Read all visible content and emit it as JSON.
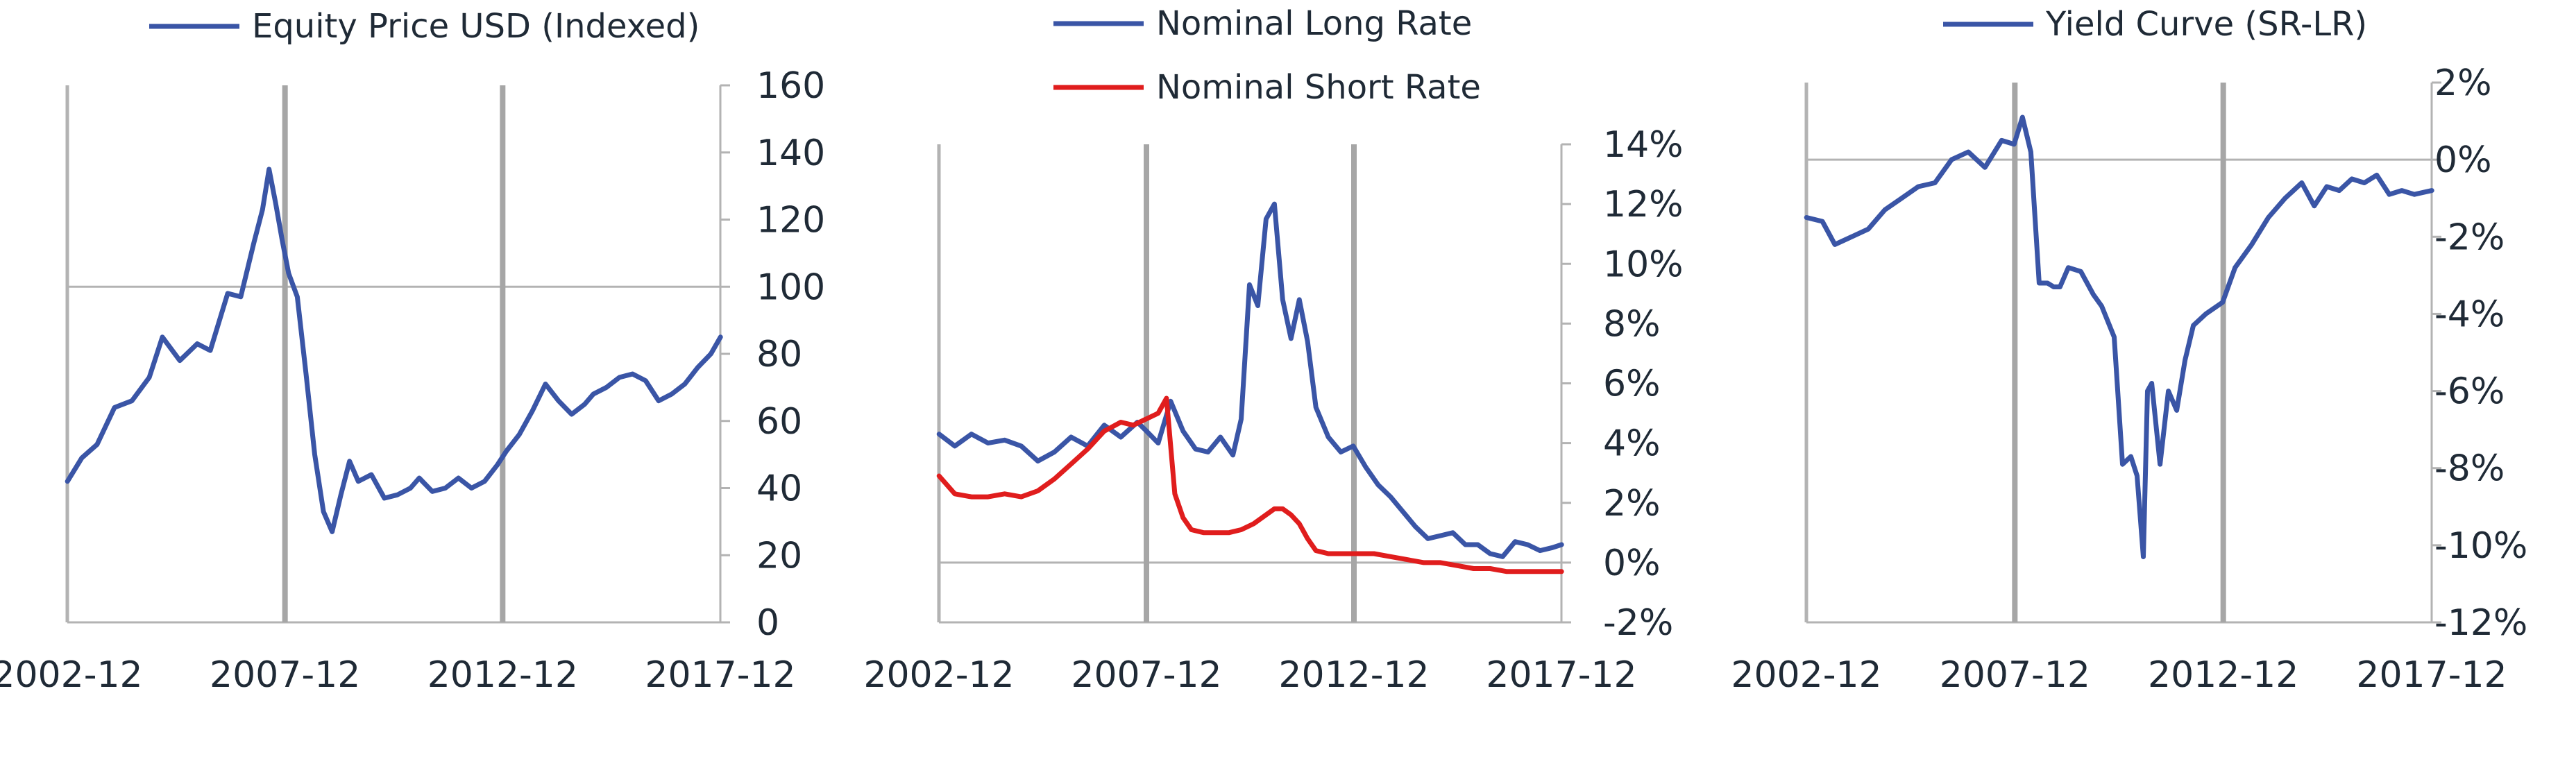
{
  "colors": {
    "blue": "#3a55a6",
    "red": "#e01d1d",
    "axis": "#b3b3b3",
    "vline": "#a6a6a6",
    "text": "#1f2a36"
  },
  "chart_data": [
    {
      "type": "line",
      "xlim": [
        "2002-12",
        "2017-12"
      ],
      "x_ticks": [
        "2002-12",
        "2007-12",
        "2012-12",
        "2017-12"
      ],
      "vertical_lines": [
        "2007-12",
        "2012-12"
      ],
      "baseline": 100,
      "ylim": [
        0,
        160
      ],
      "y_ticks": [
        "0",
        "20",
        "40",
        "60",
        "80",
        "100",
        "120",
        "140",
        "160"
      ],
      "y_tick_values": [
        0,
        20,
        40,
        60,
        80,
        100,
        120,
        140,
        160
      ],
      "legend_position": "top",
      "series": [
        {
          "name": "Equity Price USD (Indexed)",
          "color": "#3a55a6",
          "x": [
            2002.92,
            2003.25,
            2003.6,
            2004.0,
            2004.4,
            2004.8,
            2005.1,
            2005.5,
            2005.9,
            2006.2,
            2006.6,
            2006.9,
            2007.2,
            2007.4,
            2007.55,
            2007.7,
            2007.85,
            2008.0,
            2008.2,
            2008.4,
            2008.6,
            2008.8,
            2009.0,
            2009.2,
            2009.4,
            2009.6,
            2009.9,
            2010.2,
            2010.5,
            2010.8,
            2011.0,
            2011.3,
            2011.6,
            2011.9,
            2012.2,
            2012.5,
            2012.8,
            2013.0,
            2013.3,
            2013.6,
            2013.9,
            2014.2,
            2014.5,
            2014.8,
            2015.0,
            2015.3,
            2015.6,
            2015.9,
            2016.2,
            2016.5,
            2016.8,
            2017.1,
            2017.4,
            2017.7,
            2017.92
          ],
          "y": [
            42,
            49,
            53,
            64,
            66,
            73,
            85,
            78,
            83,
            81,
            98,
            97,
            113,
            123,
            135,
            125,
            114,
            104,
            97,
            74,
            50,
            33,
            27,
            38,
            48,
            42,
            44,
            37,
            38,
            40,
            43,
            39,
            40,
            43,
            40,
            42,
            47,
            51,
            56,
            63,
            71,
            66,
            62,
            65,
            68,
            70,
            73,
            74,
            72,
            66,
            68,
            71,
            76,
            80,
            85
          ]
        }
      ]
    },
    {
      "type": "line",
      "xlim": [
        "2002-12",
        "2017-12"
      ],
      "x_ticks": [
        "2002-12",
        "2007-12",
        "2012-12",
        "2017-12"
      ],
      "vertical_lines": [
        "2007-12",
        "2012-12"
      ],
      "baseline": 0,
      "ylim": [
        -2,
        14
      ],
      "y_ticks": [
        "-2%",
        "0%",
        "2%",
        "4%",
        "6%",
        "8%",
        "10%",
        "12%",
        "14%"
      ],
      "y_tick_values": [
        -2,
        0,
        2,
        4,
        6,
        8,
        10,
        12,
        14
      ],
      "legend_position": "top",
      "series": [
        {
          "name": "Nominal Long Rate",
          "color": "#3a55a6",
          "x": [
            2002.92,
            2003.3,
            2003.7,
            2004.1,
            2004.5,
            2004.9,
            2005.3,
            2005.7,
            2006.1,
            2006.5,
            2006.9,
            2007.3,
            2007.7,
            2007.92,
            2008.2,
            2008.5,
            2008.8,
            2009.1,
            2009.4,
            2009.7,
            2010.0,
            2010.2,
            2010.4,
            2010.6,
            2010.8,
            2011.0,
            2011.2,
            2011.4,
            2011.6,
            2011.8,
            2012.0,
            2012.3,
            2012.6,
            2012.9,
            2013.2,
            2013.5,
            2013.8,
            2014.1,
            2014.4,
            2014.7,
            2015.0,
            2015.3,
            2015.6,
            2015.9,
            2016.2,
            2016.5,
            2016.8,
            2017.1,
            2017.4,
            2017.7,
            2017.92
          ],
          "y": [
            4.3,
            3.9,
            4.3,
            4.0,
            4.1,
            3.9,
            3.4,
            3.7,
            4.2,
            3.9,
            4.6,
            4.2,
            4.7,
            4.4,
            4.0,
            5.4,
            4.4,
            3.8,
            3.7,
            4.2,
            3.6,
            4.8,
            9.3,
            8.6,
            11.5,
            12.0,
            8.8,
            7.5,
            8.8,
            7.4,
            5.2,
            4.2,
            3.7,
            3.9,
            3.2,
            2.6,
            2.2,
            1.7,
            1.2,
            0.8,
            0.9,
            1.0,
            0.6,
            0.6,
            0.3,
            0.2,
            0.7,
            0.6,
            0.4,
            0.5,
            0.6
          ]
        },
        {
          "name": "Nominal Short Rate",
          "color": "#e01d1d",
          "x": [
            2002.92,
            2003.3,
            2003.7,
            2004.1,
            2004.5,
            2004.9,
            2005.3,
            2005.7,
            2006.1,
            2006.5,
            2006.9,
            2007.3,
            2007.6,
            2007.9,
            2008.2,
            2008.4,
            2008.6,
            2008.8,
            2009.0,
            2009.3,
            2009.6,
            2009.9,
            2010.2,
            2010.5,
            2010.8,
            2011.0,
            2011.2,
            2011.4,
            2011.6,
            2011.8,
            2012.0,
            2012.3,
            2012.7,
            2013.0,
            2013.4,
            2013.8,
            2014.2,
            2014.6,
            2015.0,
            2015.4,
            2015.8,
            2016.2,
            2016.6,
            2017.0,
            2017.4,
            2017.92
          ],
          "y": [
            2.9,
            2.3,
            2.2,
            2.2,
            2.3,
            2.2,
            2.4,
            2.8,
            3.3,
            3.8,
            4.4,
            4.7,
            4.6,
            4.8,
            5.0,
            5.5,
            2.3,
            1.5,
            1.1,
            1.0,
            1.0,
            1.0,
            1.1,
            1.3,
            1.6,
            1.8,
            1.8,
            1.6,
            1.3,
            0.8,
            0.4,
            0.3,
            0.3,
            0.3,
            0.3,
            0.2,
            0.1,
            0.0,
            0.0,
            -0.1,
            -0.2,
            -0.2,
            -0.3,
            -0.3,
            -0.3,
            -0.3
          ]
        }
      ]
    },
    {
      "type": "line",
      "xlim": [
        "2002-12",
        "2017-12"
      ],
      "x_ticks": [
        "2002-12",
        "2007-12",
        "2012-12",
        "2017-12"
      ],
      "vertical_lines": [
        "2007-12",
        "2012-12"
      ],
      "baseline": 0,
      "ylim": [
        -12,
        2
      ],
      "y_ticks": [
        "-12%",
        "-10%",
        "-8%",
        "-6%",
        "-4%",
        "-2%",
        "0%",
        "2%"
      ],
      "y_tick_values": [
        -12,
        -10,
        -8,
        -6,
        -4,
        -2,
        0,
        2
      ],
      "legend_position": "top",
      "series": [
        {
          "name": "Yield Curve (SR-LR)",
          "color": "#3a55a6",
          "x": [
            2002.92,
            2003.3,
            2003.6,
            2004.0,
            2004.4,
            2004.8,
            2005.2,
            2005.6,
            2006.0,
            2006.4,
            2006.8,
            2007.2,
            2007.6,
            2007.9,
            2008.1,
            2008.3,
            2008.5,
            2008.7,
            2008.85,
            2009.0,
            2009.2,
            2009.5,
            2009.8,
            2010.0,
            2010.3,
            2010.5,
            2010.7,
            2010.85,
            2011.0,
            2011.1,
            2011.2,
            2011.4,
            2011.6,
            2011.8,
            2012.0,
            2012.2,
            2012.5,
            2012.9,
            2013.2,
            2013.6,
            2014.0,
            2014.4,
            2014.8,
            2015.1,
            2015.4,
            2015.7,
            2016.0,
            2016.3,
            2016.6,
            2016.9,
            2017.2,
            2017.5,
            2017.92
          ],
          "y": [
            -1.5,
            -1.6,
            -2.2,
            -2.0,
            -1.8,
            -1.3,
            -1.0,
            -0.7,
            -0.6,
            0.0,
            0.2,
            -0.2,
            0.5,
            0.4,
            1.1,
            0.2,
            -3.2,
            -3.2,
            -3.3,
            -3.3,
            -2.8,
            -2.9,
            -3.5,
            -3.8,
            -4.6,
            -7.9,
            -7.7,
            -8.2,
            -10.3,
            -6.0,
            -5.8,
            -7.9,
            -6.0,
            -6.5,
            -5.2,
            -4.3,
            -4.0,
            -3.7,
            -2.8,
            -2.2,
            -1.5,
            -1.0,
            -0.6,
            -1.2,
            -0.7,
            -0.8,
            -0.5,
            -0.6,
            -0.4,
            -0.9,
            -0.8,
            -0.9,
            -0.8
          ]
        }
      ]
    }
  ]
}
